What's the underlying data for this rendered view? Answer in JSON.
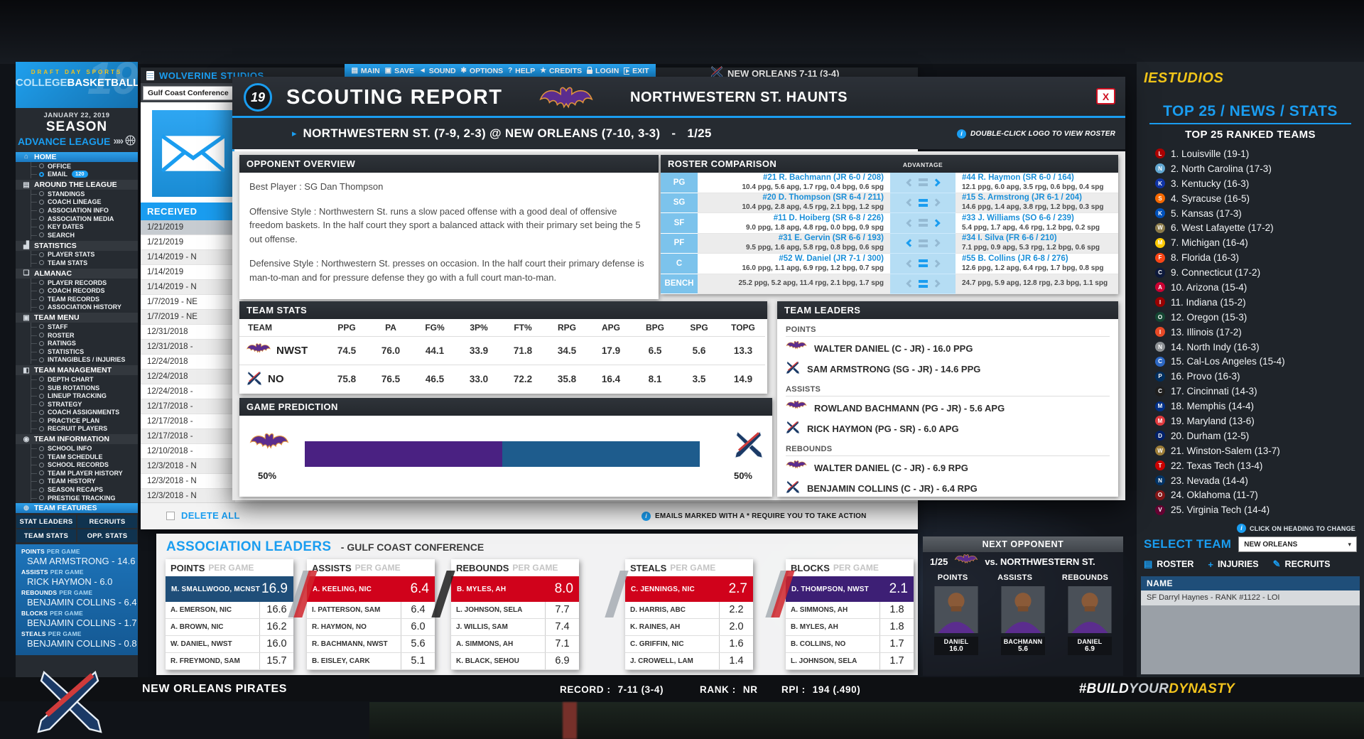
{
  "colors": {
    "accent_blue": "#1a9df0",
    "dark_panel": "#262b31",
    "purple": "#4a2182",
    "navy": "#1e5c8d",
    "red": "#d0021b",
    "gold": "#f2c31d"
  },
  "icons": {
    "main": "▤",
    "save": "▣",
    "sound": "◄",
    "options": "✱",
    "help": "?",
    "credits": "★",
    "home": "⌂",
    "league": "▤",
    "stats": "▟",
    "almanac": "❏",
    "team-menu": "▣",
    "management": "◧",
    "information": "◉",
    "features": "⊕",
    "roster": "▤",
    "injuries": "+",
    "recruits": "✎"
  },
  "top_menu": {
    "items": [
      {
        "label": "MAIN",
        "icon": "main"
      },
      {
        "label": "SAVE",
        "icon": "save"
      },
      {
        "label": "SOUND",
        "icon": "sound"
      },
      {
        "label": "OPTIONS",
        "icon": "options"
      },
      {
        "label": "HELP",
        "icon": "help"
      },
      {
        "label": "CREDITS",
        "icon": "credits"
      },
      {
        "label": "LOGIN",
        "icon": "lock"
      },
      {
        "label": "EXIT",
        "icon": "exit"
      }
    ]
  },
  "top_team": {
    "label": "NEW ORLEANS 7-11 (3-4)"
  },
  "sidebar": {
    "logo": {
      "line1": "DRAFT DAY SPORTS",
      "college": "COLLEGE",
      "basketball": "BASKETBALL",
      "badge": "19"
    },
    "date": "JANUARY 22, 2019",
    "mode": "SEASON",
    "advance": "ADVANCE LEAGUE",
    "sections": [
      {
        "icon": "home",
        "label": "HOME",
        "highlight": true,
        "items": [
          {
            "label": "OFFICE"
          },
          {
            "label": "EMAIL",
            "badge": "120",
            "selected": true
          }
        ]
      },
      {
        "icon": "league",
        "label": "AROUND THE LEAGUE",
        "items": [
          {
            "label": "STANDINGS"
          },
          {
            "label": "COACH LINEAGE"
          },
          {
            "label": "ASSOCIATION INFO"
          },
          {
            "label": "ASSOCIATION MEDIA"
          },
          {
            "label": "KEY DATES"
          },
          {
            "label": "SEARCH"
          }
        ]
      },
      {
        "icon": "stats",
        "label": "STATISTICS",
        "items": [
          {
            "label": "PLAYER STATS"
          },
          {
            "label": "TEAM STATS"
          }
        ]
      },
      {
        "icon": "almanac",
        "label": "ALMANAC",
        "items": [
          {
            "label": "PLAYER RECORDS"
          },
          {
            "label": "COACH RECORDS"
          },
          {
            "label": "TEAM RECORDS"
          },
          {
            "label": "ASSOCIATION HISTORY"
          }
        ]
      },
      {
        "icon": "team-menu",
        "label": "TEAM MENU",
        "items": [
          {
            "label": "STAFF"
          },
          {
            "label": "ROSTER"
          },
          {
            "label": "RATINGS"
          },
          {
            "label": "STATISTICS"
          },
          {
            "label": "INTANGIBLES / INJURIES"
          }
        ]
      },
      {
        "icon": "management",
        "label": "TEAM MANAGEMENT",
        "items": [
          {
            "label": "DEPTH CHART"
          },
          {
            "label": "SUB ROTATIONS"
          },
          {
            "label": "LINEUP TRACKING"
          },
          {
            "label": "STRATEGY"
          },
          {
            "label": "COACH ASSIGNMENTS"
          },
          {
            "label": "PRACTICE PLAN"
          },
          {
            "label": "RECRUIT PLAYERS"
          }
        ]
      },
      {
        "icon": "information",
        "label": "TEAM INFORMATION",
        "items": [
          {
            "label": "SCHOOL INFO"
          },
          {
            "label": "TEAM SCHEDULE"
          },
          {
            "label": "SCHOOL RECORDS"
          },
          {
            "label": "TEAM PLAYER HISTORY"
          },
          {
            "label": "TEAM HISTORY"
          },
          {
            "label": "SEASON RECAPS"
          },
          {
            "label": "PRESTIGE TRACKING"
          }
        ]
      },
      {
        "icon": "features",
        "label": "TEAM FEATURES",
        "highlight": true,
        "items": []
      }
    ],
    "tabs": [
      "STAT LEADERS",
      "RECRUITS",
      "TEAM STATS",
      "OPP. STATS"
    ],
    "leaders_suffix": "PER GAME",
    "leaders": [
      {
        "stat": "POINTS",
        "player": "SAM ARMSTRONG - 14.6"
      },
      {
        "stat": "ASSISTS",
        "player": "RICK HAYMON - 6.0"
      },
      {
        "stat": "REBOUNDS",
        "player": "BENJAMIN COLLINS - 6.4"
      },
      {
        "stat": "BLOCKS",
        "player": "BENJAMIN COLLINS - 1.7"
      },
      {
        "stat": "STEALS",
        "player": "BENJAMIN COLLINS - 0.8"
      }
    ]
  },
  "email_window": {
    "title": "WOLVERINE STUDIOS",
    "conference_dropdown": "Gulf Coast Conference",
    "received_header": "RECEIVED",
    "rows": [
      "1/21/2019",
      "1/21/2019",
      "1/14/2019 - N",
      "1/14/2019",
      "1/14/2019 - N",
      "1/7/2019 - NE",
      "1/7/2019 - NE",
      "12/31/2018",
      "12/31/2018 -",
      "12/24/2018",
      "12/24/2018",
      "12/24/2018 -",
      "12/17/2018 -",
      "12/17/2018 -",
      "12/17/2018 -",
      "12/10/2018 -",
      "12/3/2018 - N",
      "12/3/2018 - N",
      "12/3/2018 - N"
    ],
    "selected_row": 0,
    "delete_all": "DELETE ALL",
    "note": "EMAILS MARKED WITH A * REQUIRE YOU TO TAKE ACTION"
  },
  "scouting": {
    "badge": "19",
    "title": "SCOUTING REPORT",
    "team_title": "NORTHWESTERN ST. HAUNTS",
    "close_label": "X",
    "matchup": "NORTHWESTERN ST. (7-9, 2-3) @ NEW ORLEANS (7-10, 3-3)",
    "matchup_separator": "-",
    "matchup_date": "1/25",
    "hint": "DOUBLE-CLICK LOGO TO VIEW ROSTER",
    "caret": "▸",
    "opponent_overview": {
      "header": "OPPONENT OVERVIEW",
      "paragraphs": [
        "Best Player : SG Dan Thompson",
        "Offensive Style : Northwestern St. runs a slow paced offense with a good deal of offensive freedom baskets. In the half court they sport a balanced attack with their primary set being the 5 out offense.",
        "Defensive Style : Northwestern St. presses on occasion. In the half court their primary defense is man-to-man and for pressure defense they go with a full court man-to-man."
      ]
    },
    "roster_comparison": {
      "header": "ROSTER COMPARISON",
      "advantage_label": "ADVANTAGE",
      "rows": [
        {
          "pos": "PG",
          "left_name": "#21 R. Bachmann (JR 6-0 / 208)",
          "left_stats": "10.4 ppg, 5.6 apg, 1.7 rpg, 0.4 bpg, 0.6 spg",
          "right_name": "#44 R. Haymon (SR 6-0 / 164)",
          "right_stats": "12.1 ppg, 6.0 apg, 3.5 rpg, 0.6 bpg, 0.4 spg",
          "advantage": "right"
        },
        {
          "pos": "SG",
          "left_name": "#20 D. Thompson (SR 6-4 / 211)",
          "left_stats": "10.4 ppg, 2.8 apg, 4.5 rpg, 2.1 bpg, 1.2 spg",
          "right_name": "#15 S. Armstrong (JR 6-1 / 204)",
          "right_stats": "14.6 ppg, 1.4 apg, 3.8 rpg, 1.2 bpg, 0.3 spg",
          "advantage": "even"
        },
        {
          "pos": "SF",
          "left_name": "#11 D. Hoiberg (SR 6-8 / 226)",
          "left_stats": "9.0 ppg, 1.8 apg, 4.8 rpg, 0.0 bpg, 0.9 spg",
          "right_name": "#33 J. Williams (SO 6-6 / 239)",
          "right_stats": "5.4 ppg, 1.7 apg, 4.6 rpg, 1.2 bpg, 0.2 spg",
          "advantage": "right"
        },
        {
          "pos": "PF",
          "left_name": "#31 E. Gervin (SR 6-6 / 193)",
          "left_stats": "9.5 ppg, 1.6 apg, 5.8 rpg, 0.8 bpg, 0.6 spg",
          "right_name": "#34 I. Silva (FR 6-6 / 210)",
          "right_stats": "7.1 ppg, 0.9 apg, 5.3 rpg, 1.2 bpg, 0.6 spg",
          "advantage": "left"
        },
        {
          "pos": "C",
          "left_name": "#52 W. Daniel (JR 7-1 / 300)",
          "left_stats": "16.0 ppg, 1.1 apg, 6.9 rpg, 1.2 bpg, 0.7 spg",
          "right_name": "#55 B. Collins (JR 6-8 / 276)",
          "right_stats": "12.6 ppg, 1.2 apg, 6.4 rpg, 1.7 bpg, 0.8 spg",
          "advantage": "even"
        },
        {
          "pos": "BENCH",
          "left_name": "",
          "left_stats": "25.2 ppg, 5.2 apg, 11.4 rpg, 2.1 bpg, 1.7 spg",
          "right_name": "",
          "right_stats": "24.7 ppg, 5.9 apg, 12.8 rpg, 2.3 bpg, 1.1 spg",
          "advantage": "even"
        }
      ]
    },
    "team_stats": {
      "header": "TEAM STATS",
      "columns": [
        "TEAM",
        "PPG",
        "PA",
        "FG%",
        "3P%",
        "FT%",
        "RPG",
        "APG",
        "BPG",
        "SPG",
        "TOPG"
      ],
      "rows": [
        {
          "team": "NWST",
          "logo": "bat",
          "values": [
            "74.5",
            "76.0",
            "44.1",
            "33.9",
            "71.8",
            "34.5",
            "17.9",
            "6.5",
            "5.6",
            "13.3"
          ]
        },
        {
          "team": "NO",
          "logo": "swords",
          "values": [
            "75.8",
            "76.5",
            "46.5",
            "33.0",
            "72.2",
            "35.8",
            "16.4",
            "8.1",
            "3.5",
            "14.9"
          ]
        }
      ]
    },
    "game_prediction": {
      "header": "GAME PREDICTION",
      "left_pct": "50%",
      "right_pct": "50%",
      "left_width": 50,
      "right_width": 50
    },
    "team_leaders": {
      "header": "TEAM LEADERS",
      "sections": [
        {
          "label": "POINTS",
          "rows": [
            {
              "icon": "bat",
              "text": "WALTER DANIEL (C - JR) - 16.0 PPG"
            },
            {
              "icon": "swords",
              "text": "SAM ARMSTRONG (SG - JR) - 14.6 PPG"
            }
          ]
        },
        {
          "label": "ASSISTS",
          "rows": [
            {
              "icon": "bat",
              "text": "ROWLAND BACHMANN (PG - JR) - 5.6 APG"
            },
            {
              "icon": "swords",
              "text": "RICK HAYMON (PG - SR) - 6.0 APG"
            }
          ]
        },
        {
          "label": "REBOUNDS",
          "rows": [
            {
              "icon": "bat",
              "text": "WALTER DANIEL (C - JR) - 6.9 RPG"
            },
            {
              "icon": "swords",
              "text": "BENJAMIN COLLINS (C - JR) - 6.4 RPG"
            }
          ]
        }
      ]
    }
  },
  "association_leaders": {
    "title": "ASSOCIATION LEADERS",
    "subtitle": "- GULF COAST CONFERENCE",
    "suffix": "PER GAME",
    "panels": [
      {
        "stat": "POINTS",
        "accent": "#1f4e79",
        "rows": [
          {
            "name": "M. SMALLWOOD, MCNST",
            "value": "16.9"
          },
          {
            "name": "A. EMERSON, NIC",
            "value": "16.6"
          },
          {
            "name": "A. BROWN, NIC",
            "value": "16.2"
          },
          {
            "name": "W. DANIEL, NWST",
            "value": "16.0"
          },
          {
            "name": "R. FREYMOND, SAM",
            "value": "15.7"
          }
        ]
      },
      {
        "stat": "ASSISTS",
        "accent": "#d0021b",
        "rows": [
          {
            "name": "A. KEELING, NIC",
            "value": "6.4"
          },
          {
            "name": "I. PATTERSON, SAM",
            "value": "6.4"
          },
          {
            "name": "R. HAYMON, NO",
            "value": "6.0"
          },
          {
            "name": "R. BACHMANN, NWST",
            "value": "5.6"
          },
          {
            "name": "B. EISLEY, CARK",
            "value": "5.1"
          }
        ]
      },
      {
        "stat": "REBOUNDS",
        "accent": "#d0021b",
        "rows": [
          {
            "name": "B. MYLES, AH",
            "value": "8.0"
          },
          {
            "name": "L. JOHNSON, SELA",
            "value": "7.7"
          },
          {
            "name": "J. WILLIS, SAM",
            "value": "7.4"
          },
          {
            "name": "A. SIMMONS, AH",
            "value": "7.1"
          },
          {
            "name": "K. BLACK, SEHOU",
            "value": "6.9"
          }
        ]
      },
      {
        "stat": "STEALS",
        "accent": "#d0021b",
        "rows": [
          {
            "name": "C. JENNINGS, NIC",
            "value": "2.7"
          },
          {
            "name": "D. HARRIS, ABC",
            "value": "2.2"
          },
          {
            "name": "K. RAINES, AH",
            "value": "2.0"
          },
          {
            "name": "C. GRIFFIN, NIC",
            "value": "1.6"
          },
          {
            "name": "J. CROWELL, LAM",
            "value": "1.4"
          }
        ]
      },
      {
        "stat": "BLOCKS",
        "accent": "#3d1f75",
        "rows": [
          {
            "name": "D. THOMPSON, NWST",
            "value": "2.1"
          },
          {
            "name": "A. SIMMONS, AH",
            "value": "1.8"
          },
          {
            "name": "B. MYLES, AH",
            "value": "1.8"
          },
          {
            "name": "B. COLLINS, NO",
            "value": "1.7"
          },
          {
            "name": "L. JOHNSON, SELA",
            "value": "1.7"
          }
        ]
      }
    ]
  },
  "next_opponent": {
    "header": "NEXT OPPONENT",
    "date": "1/25",
    "vs": "vs. NORTHWESTERN ST.",
    "columns": [
      {
        "label": "POINTS",
        "player": "DANIEL",
        "value": "16.0"
      },
      {
        "label": "ASSISTS",
        "player": "BACHMANN",
        "value": "5.6"
      },
      {
        "label": "REBOUNDS",
        "player": "DANIEL",
        "value": "6.9"
      }
    ]
  },
  "right_sidebar": {
    "brand": "IESTUDIOS",
    "heading": "TOP 25 / NEWS / STATS",
    "subheading": "TOP 25 RANKED TEAMS",
    "teams": [
      {
        "text": "1. Louisville (19-1)",
        "color": "#ad0000",
        "initial": "L"
      },
      {
        "text": "2. North Carolina (17-3)",
        "color": "#62a8d2",
        "initial": "N"
      },
      {
        "text": "3. Kentucky (16-3)",
        "color": "#1034a6",
        "initial": "K"
      },
      {
        "text": "4. Syracuse (16-5)",
        "color": "#f76900",
        "initial": "S"
      },
      {
        "text": "5. Kansas (17-3)",
        "color": "#0051ba",
        "initial": "K"
      },
      {
        "text": "6. West Lafayette (17-2)",
        "color": "#8b7b4b",
        "initial": "W"
      },
      {
        "text": "7. Michigan (16-4)",
        "color": "#ffcb05",
        "initial": "M"
      },
      {
        "text": "8. Florida (16-3)",
        "color": "#fa4616",
        "initial": "F"
      },
      {
        "text": "9. Connecticut (17-2)",
        "color": "#0e1a3c",
        "initial": "C"
      },
      {
        "text": "10. Arizona (15-4)",
        "color": "#cc0033",
        "initial": "A"
      },
      {
        "text": "11. Indiana (15-2)",
        "color": "#990000",
        "initial": "I"
      },
      {
        "text": "12. Oregon (15-3)",
        "color": "#154733",
        "initial": "O"
      },
      {
        "text": "13. Illinois (17-2)",
        "color": "#e84a27",
        "initial": "I"
      },
      {
        "text": "14. North Indy (16-3)",
        "color": "#8e9296",
        "initial": "N"
      },
      {
        "text": "15. Cal-Los Angeles (15-4)",
        "color": "#2d68c4",
        "initial": "C"
      },
      {
        "text": "16. Provo (16-3)",
        "color": "#002e5d",
        "initial": "P"
      },
      {
        "text": "17. Cincinnati (14-3)",
        "color": "#1f1f1f",
        "initial": "C"
      },
      {
        "text": "18. Memphis (14-4)",
        "color": "#003087",
        "initial": "M"
      },
      {
        "text": "19. Maryland (13-6)",
        "color": "#e03a3e",
        "initial": "M"
      },
      {
        "text": "20. Durham (12-5)",
        "color": "#012169",
        "initial": "D"
      },
      {
        "text": "21. Winston-Salem (13-7)",
        "color": "#9e7e38",
        "initial": "W"
      },
      {
        "text": "22. Texas Tech (13-4)",
        "color": "#cc0000",
        "initial": "T"
      },
      {
        "text": "23. Nevada (14-4)",
        "color": "#003366",
        "initial": "N"
      },
      {
        "text": "24. Oklahoma (11-7)",
        "color": "#841617",
        "initial": "O"
      },
      {
        "text": "25. Virginia Tech (14-4)",
        "color": "#630031",
        "initial": "V"
      }
    ],
    "click_hint": "CLICK ON HEADING TO CHANGE",
    "select_team_label": "SELECT TEAM",
    "select_team_value": "NEW ORLEANS",
    "buttons": [
      {
        "label": "ROSTER",
        "icon": "roster"
      },
      {
        "label": "INJURIES",
        "icon": "injuries"
      },
      {
        "label": "RECRUITS",
        "icon": "recruits"
      }
    ],
    "name_header": "NAME",
    "recruit_row": "SF Darryl Haynes - RANK #1122 - LOI"
  },
  "bottom_bar": {
    "team": "NEW ORLEANS PIRATES",
    "record_label": "RECORD :",
    "record": "7-11 (3-4)",
    "rank_label": "RANK :",
    "rank": "NR",
    "rpi_label": "RPI :",
    "rpi": "194 (.490)",
    "hashtag": {
      "p1": "#BUILD",
      "p2": "YOUR",
      "p3": "DYNASTY"
    }
  },
  "info_icon_glyph": "i",
  "dropdown_caret": "▾"
}
